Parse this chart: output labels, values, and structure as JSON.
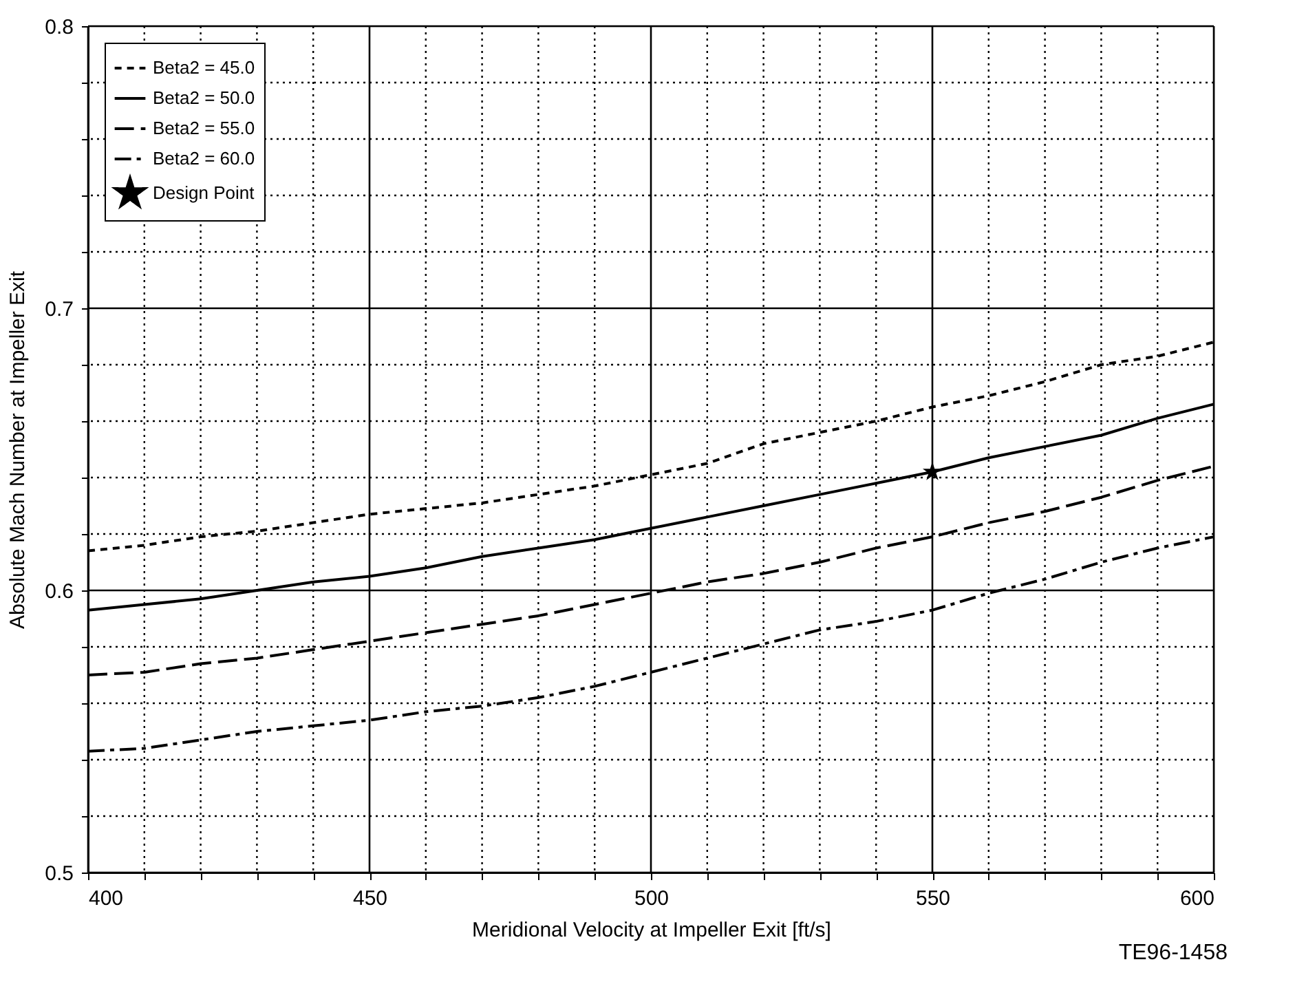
{
  "chart_data": {
    "type": "line",
    "xlabel": "Meridional Velocity at Impeller Exit [ft/s]",
    "ylabel": "Absolute Mach Number at Impeller Exit",
    "annotations": [
      "TE96-1458"
    ],
    "x": [
      400,
      410,
      420,
      430,
      440,
      450,
      460,
      470,
      480,
      490,
      500,
      510,
      520,
      530,
      540,
      550,
      560,
      570,
      580,
      590,
      600
    ],
    "series": [
      {
        "name": "Beta2 = 45.0",
        "color": "#000000",
        "line_style": "dashed",
        "values": [
          0.614,
          0.616,
          0.619,
          0.621,
          0.624,
          0.627,
          0.629,
          0.631,
          0.634,
          0.637,
          0.641,
          0.645,
          0.652,
          0.656,
          0.66,
          0.665,
          0.669,
          0.674,
          0.68,
          0.683,
          0.688
        ]
      },
      {
        "name": "Beta2 = 50.0",
        "color": "#000000",
        "line_style": "solid",
        "values": [
          0.593,
          0.595,
          0.597,
          0.6,
          0.603,
          0.605,
          0.608,
          0.612,
          0.615,
          0.618,
          0.622,
          0.626,
          0.63,
          0.634,
          0.638,
          0.642,
          0.647,
          0.651,
          0.655,
          0.661,
          0.666
        ]
      },
      {
        "name": "Beta2 = 55.0",
        "color": "#000000",
        "line_style": "dashed",
        "values": [
          0.57,
          0.571,
          0.574,
          0.576,
          0.579,
          0.582,
          0.585,
          0.588,
          0.591,
          0.595,
          0.599,
          0.603,
          0.606,
          0.61,
          0.615,
          0.619,
          0.624,
          0.628,
          0.633,
          0.639,
          0.644
        ]
      },
      {
        "name": "Beta2 = 60.0",
        "color": "#000000",
        "line_style": "dashed",
        "values": [
          0.543,
          0.544,
          0.547,
          0.55,
          0.552,
          0.554,
          0.557,
          0.559,
          0.562,
          0.566,
          0.571,
          0.576,
          0.581,
          0.586,
          0.589,
          0.593,
          0.599,
          0.604,
          0.61,
          0.615,
          0.619
        ]
      },
      {
        "name": "Design Point",
        "type": "scatter",
        "marker": "star",
        "color": "#000000",
        "x": [
          550
        ],
        "values": [
          0.642
        ]
      }
    ],
    "xlim": [
      400,
      600
    ],
    "xticks": [
      400,
      {
        "value": 410,
        "label": null
      },
      {
        "value": 420,
        "label": null
      },
      {
        "value": 430,
        "label": null
      },
      {
        "value": 440,
        "label": null
      },
      450,
      {
        "value": 460,
        "label": null
      },
      {
        "value": 470,
        "label": null
      },
      {
        "value": 480,
        "label": null
      },
      {
        "value": 490,
        "label": null
      },
      500,
      {
        "value": 510,
        "label": null
      },
      {
        "value": 520,
        "label": null
      },
      {
        "value": 530,
        "label": null
      },
      {
        "value": 540,
        "label": null
      },
      550,
      {
        "value": 560,
        "label": null
      },
      {
        "value": 570,
        "label": null
      },
      {
        "value": 580,
        "label": null
      },
      {
        "value": 590,
        "label": null
      },
      600
    ],
    "ylim": [
      0.5,
      0.8
    ],
    "yticks": [
      {
        "value": 0.5,
        "label": "0.5"
      },
      {
        "value": 0.52,
        "label": null
      },
      {
        "value": 0.54,
        "label": null
      },
      {
        "value": 0.56,
        "label": null
      },
      {
        "value": 0.58,
        "label": null
      },
      {
        "value": 0.6,
        "label": "0.6"
      },
      {
        "value": 0.62,
        "label": null
      },
      {
        "value": 0.64,
        "label": null
      },
      {
        "value": 0.66,
        "label": null
      },
      {
        "value": 0.68,
        "label": null
      },
      {
        "value": 0.7,
        "label": "0.7"
      },
      {
        "value": 0.72,
        "label": null
      },
      {
        "value": 0.74,
        "label": null
      },
      {
        "value": 0.76,
        "label": null
      },
      {
        "value": 0.78,
        "label": null
      },
      {
        "value": 0.8,
        "label": "0.8"
      }
    ],
    "grid": true,
    "legend": "top left"
  }
}
